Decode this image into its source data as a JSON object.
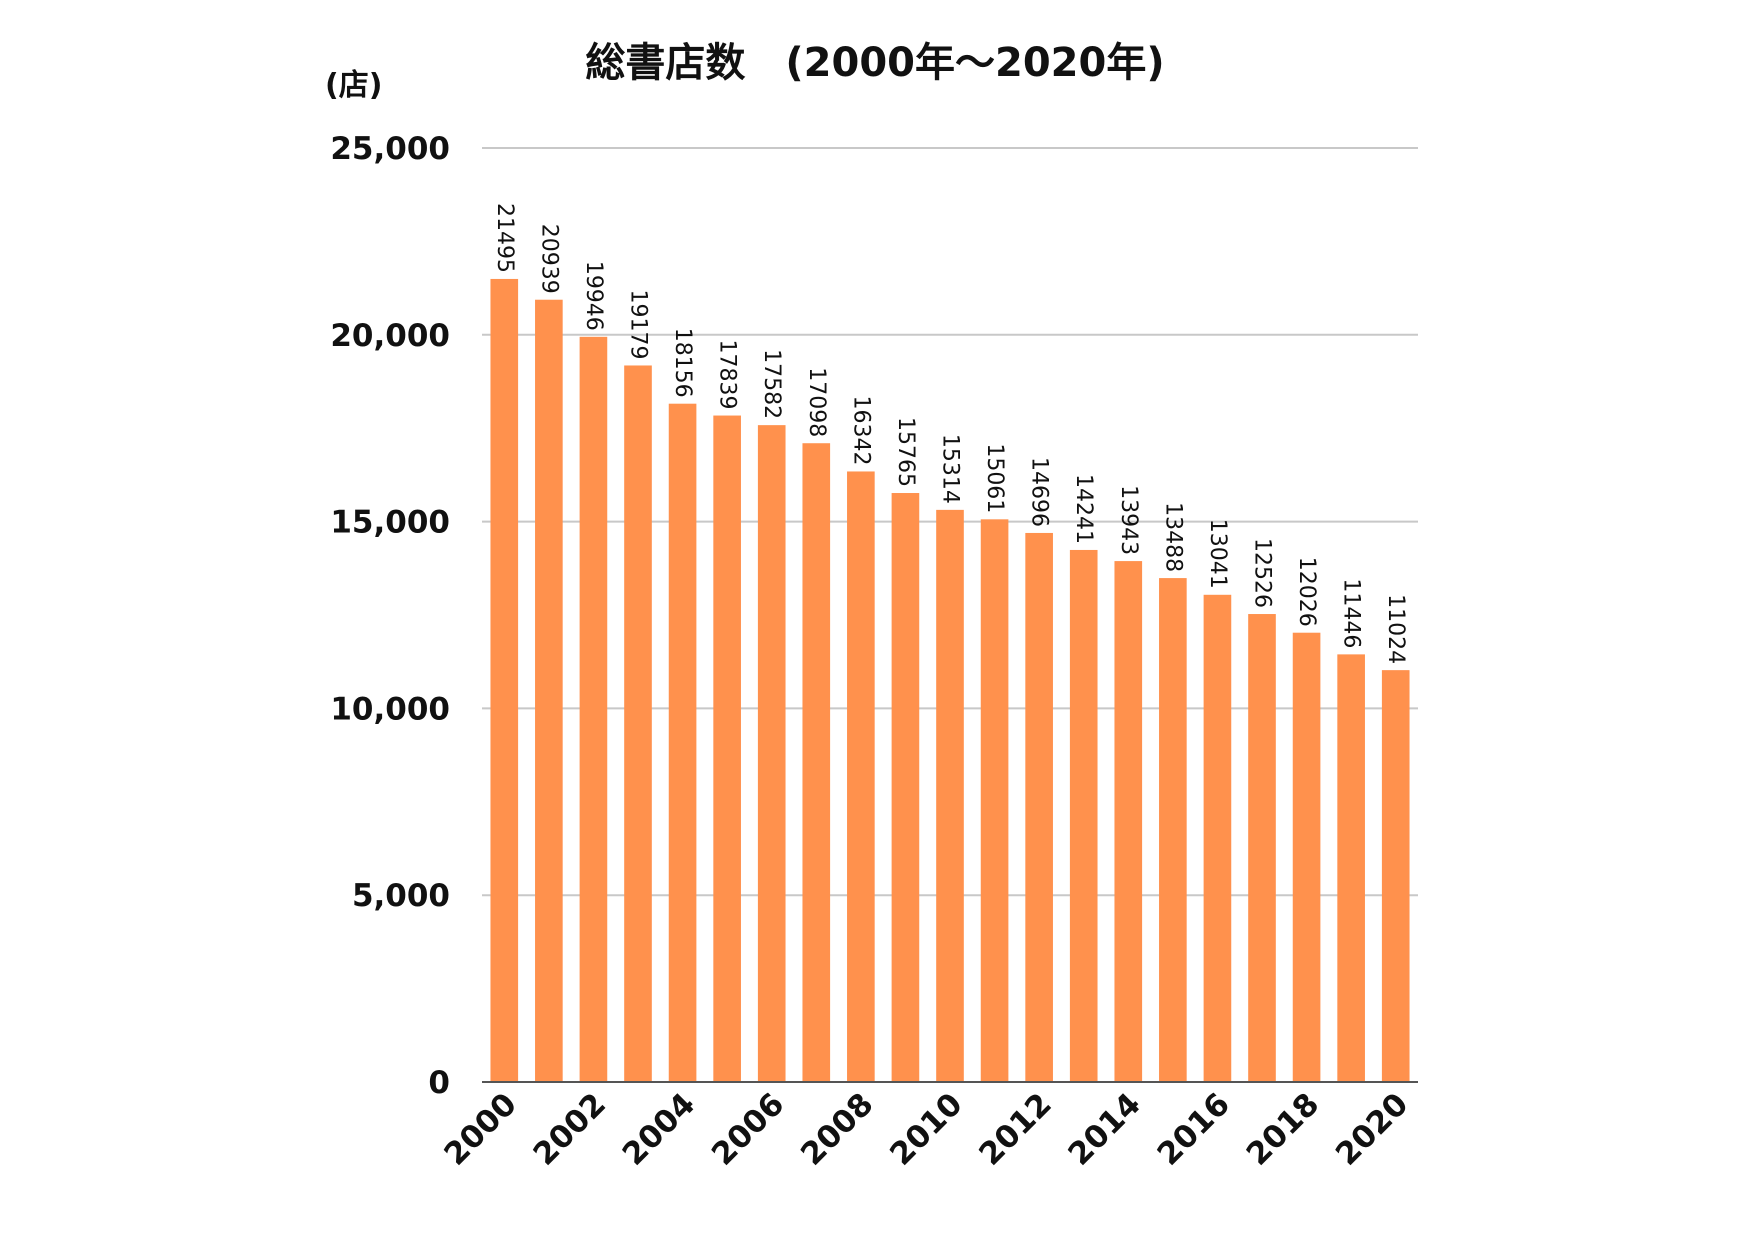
{
  "chart_data": {
    "type": "bar",
    "title": "総書店数　(2000年〜2020年)",
    "ylabel": "(店)",
    "xlabel": "",
    "ylim": [
      0,
      25000
    ],
    "yticks": [
      0,
      5000,
      10000,
      15000,
      20000,
      25000
    ],
    "ytick_labels": [
      "0",
      "5,000",
      "10,000",
      "15,000",
      "20,000",
      "25,000"
    ],
    "categories": [
      "2000",
      "2001",
      "2002",
      "2003",
      "2004",
      "2005",
      "2006",
      "2007",
      "2008",
      "2009",
      "2010",
      "2011",
      "2012",
      "2013",
      "2014",
      "2015",
      "2016",
      "2017",
      "2018",
      "2019",
      "2020"
    ],
    "x_tick_labels": [
      "2000",
      "",
      "2002",
      "",
      "2004",
      "",
      "2006",
      "",
      "2008",
      "",
      "2010",
      "",
      "2012",
      "",
      "2014",
      "",
      "2016",
      "",
      "2018",
      "",
      "2020"
    ],
    "values": [
      21495,
      20939,
      19946,
      19179,
      18156,
      17839,
      17582,
      17098,
      16342,
      15765,
      15314,
      15061,
      14696,
      14241,
      13943,
      13488,
      13041,
      12526,
      12026,
      11446,
      11024
    ],
    "data_labels": [
      "21495",
      "20939",
      "19946",
      "19179",
      "18156",
      "17839",
      "17582",
      "17098",
      "16342",
      "15765",
      "15314",
      "15061",
      "14696",
      "14241",
      "13943",
      "13488",
      "13041",
      "12526",
      "12026",
      "11446",
      "11024"
    ],
    "bar_color": "#ff914d",
    "grid": true,
    "grid_color": "#c8c8c8",
    "legend": "none"
  }
}
